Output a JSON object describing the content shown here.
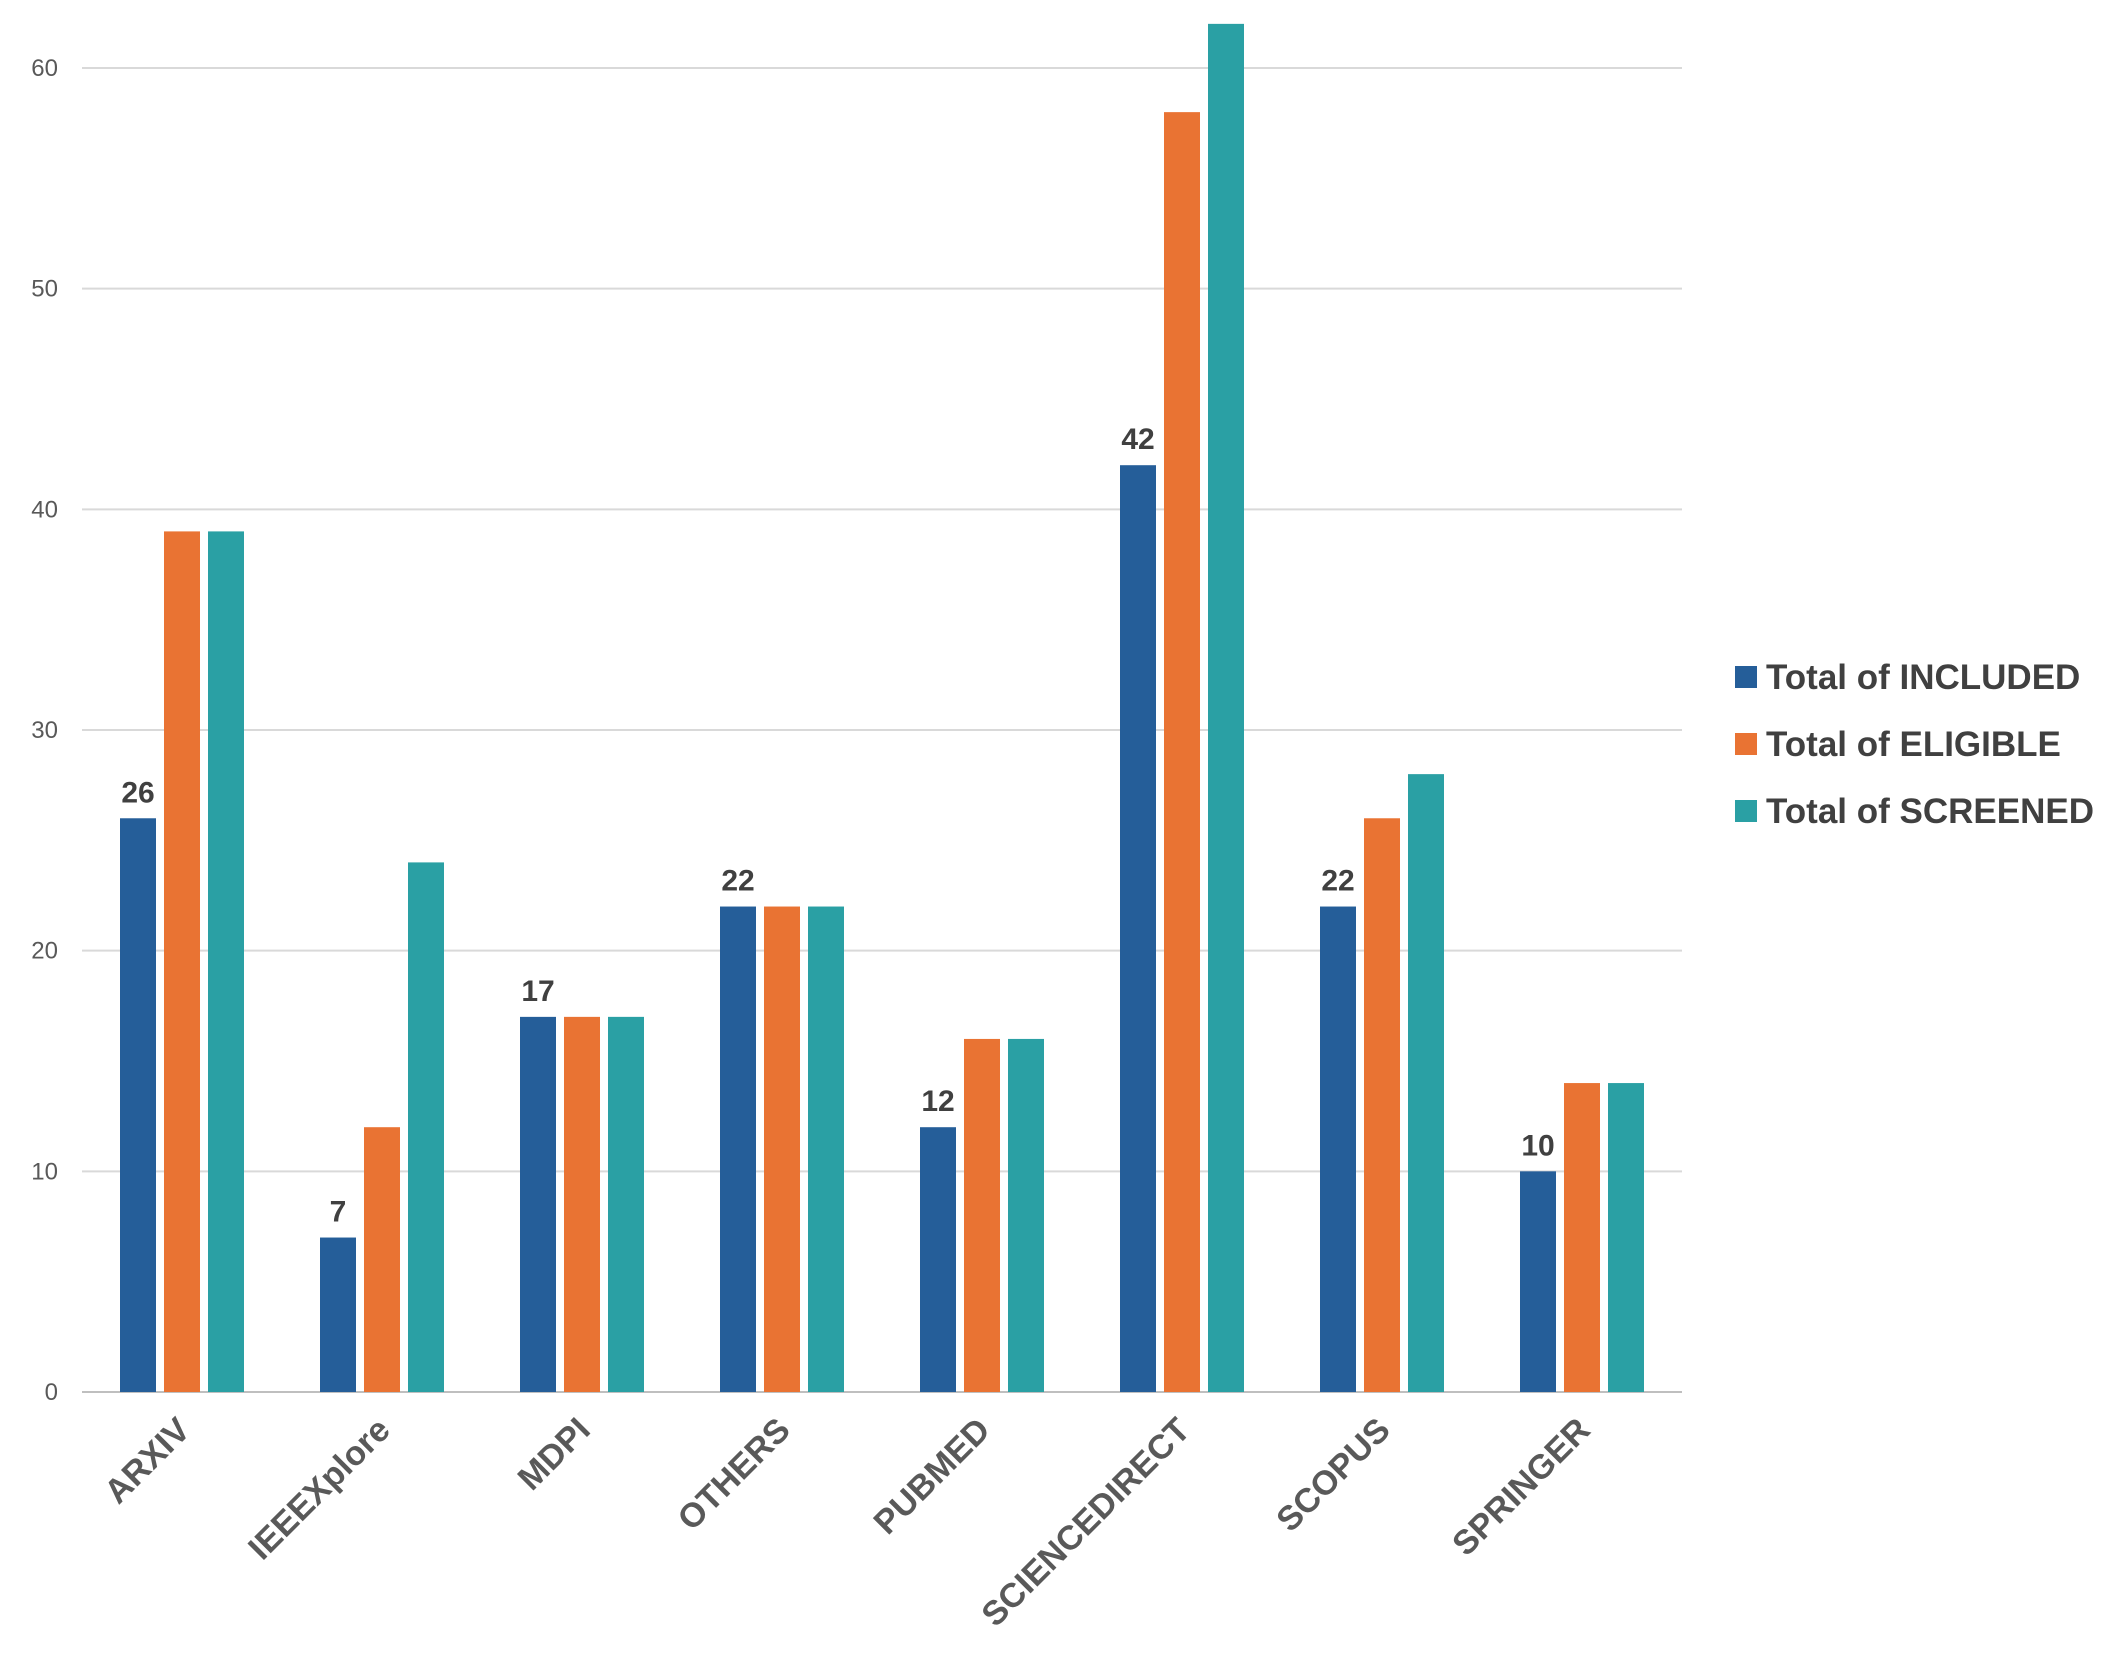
{
  "chart_data": {
    "type": "bar",
    "title": "",
    "xlabel": "",
    "ylabel": "",
    "ylim": [
      0,
      60
    ],
    "yticks": [
      0,
      10,
      20,
      30,
      40,
      50,
      60
    ],
    "grid": true,
    "legend_position": "right",
    "categories": [
      "ARXIV",
      "IEEEXplore",
      "MDPI",
      "OTHERS",
      "PUBMED",
      "SCIENCEDIRECT",
      "SCOPUS",
      "SPRINGER"
    ],
    "series": [
      {
        "name": "Total of INCLUDED",
        "color": "#255e99",
        "values": [
          26,
          7,
          17,
          22,
          12,
          42,
          22,
          10
        ],
        "show_labels": true
      },
      {
        "name": "Total of ELIGIBLE",
        "color": "#e97333",
        "values": [
          39,
          12,
          17,
          22,
          16,
          58,
          26,
          14
        ],
        "show_labels": false
      },
      {
        "name": "Total of SCREENED",
        "color": "#2aa0a4",
        "values": [
          39,
          24,
          17,
          22,
          16,
          62,
          28,
          14
        ],
        "show_labels": false
      }
    ]
  }
}
